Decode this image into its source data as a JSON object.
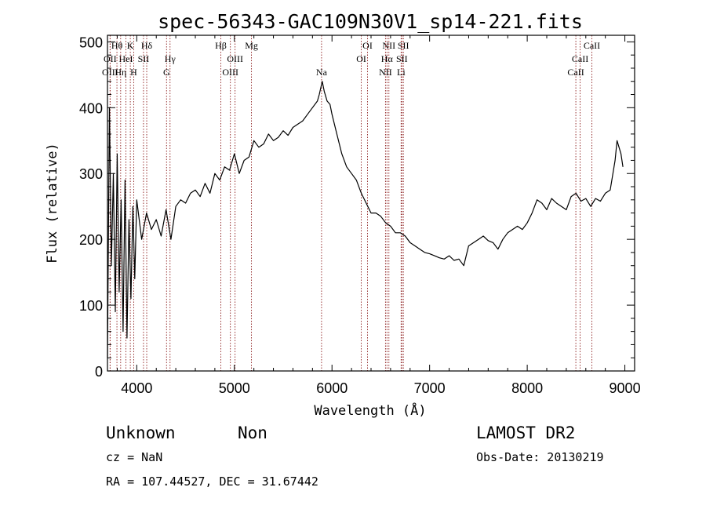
{
  "chart_data": {
    "type": "line",
    "title": "spec-56343-GAC109N30V1_sp14-221.fits",
    "xlabel": "Wavelength (Å)",
    "ylabel": "Flux (relative)",
    "xlim": [
      3700,
      9100
    ],
    "ylim": [
      0,
      510
    ],
    "xticks": [
      4000,
      5000,
      6000,
      7000,
      8000,
      9000
    ],
    "yticks": [
      0,
      100,
      200,
      300,
      400,
      500
    ],
    "grid": false,
    "series": [
      {
        "x": [
          3700,
          3720,
          3740,
          3760,
          3780,
          3800,
          3820,
          3840,
          3860,
          3880,
          3900,
          3920,
          3940,
          3960,
          3980,
          4000,
          4050,
          4100,
          4150,
          4200,
          4250,
          4300,
          4350,
          4400,
          4450,
          4500,
          4550,
          4600,
          4650,
          4700,
          4750,
          4800,
          4850,
          4900,
          4950,
          5000,
          5050,
          5100,
          5150,
          5200,
          5250,
          5300,
          5350,
          5400,
          5450,
          5500,
          5550,
          5600,
          5650,
          5700,
          5750,
          5800,
          5850,
          5870,
          5900,
          5920,
          5950,
          5980,
          6000,
          6050,
          6100,
          6150,
          6200,
          6250,
          6300,
          6350,
          6400,
          6450,
          6500,
          6550,
          6600,
          6650,
          6700,
          6750,
          6800,
          6850,
          6900,
          6950,
          7000,
          7050,
          7100,
          7150,
          7200,
          7250,
          7300,
          7350,
          7400,
          7450,
          7500,
          7550,
          7600,
          7650,
          7700,
          7750,
          7800,
          7850,
          7900,
          7950,
          8000,
          8050,
          8100,
          8150,
          8200,
          8250,
          8300,
          8350,
          8400,
          8450,
          8500,
          8550,
          8600,
          8650,
          8700,
          8750,
          8800,
          8850,
          8900,
          8920,
          8940,
          8960,
          8980
        ],
        "y": [
          20,
          400,
          160,
          300,
          90,
          330,
          120,
          260,
          60,
          290,
          50,
          230,
          110,
          250,
          140,
          260,
          200,
          240,
          215,
          230,
          205,
          245,
          200,
          250,
          260,
          255,
          270,
          275,
          265,
          285,
          270,
          300,
          290,
          310,
          305,
          330,
          300,
          320,
          325,
          350,
          340,
          345,
          360,
          350,
          355,
          365,
          358,
          370,
          375,
          380,
          390,
          400,
          410,
          420,
          440,
          425,
          410,
          405,
          390,
          360,
          330,
          310,
          300,
          290,
          270,
          255,
          240,
          240,
          235,
          225,
          220,
          210,
          210,
          205,
          195,
          190,
          185,
          180,
          178,
          175,
          172,
          170,
          175,
          168,
          170,
          160,
          190,
          195,
          200,
          205,
          198,
          195,
          185,
          200,
          210,
          215,
          220,
          215,
          225,
          240,
          260,
          255,
          245,
          262,
          255,
          250,
          245,
          265,
          270,
          258,
          262,
          250,
          262,
          258,
          270,
          275,
          320,
          350,
          340,
          330,
          310
        ]
      }
    ],
    "spectral_lines": [
      {
        "label": "Hθ",
        "x": 3797,
        "row": 1
      },
      {
        "label": "OII",
        "x": 3727,
        "row": 2
      },
      {
        "label": "OIII",
        "x": 3727,
        "row": 3
      },
      {
        "label": "K",
        "x": 3934,
        "row": 1
      },
      {
        "label": "HeI",
        "x": 3889,
        "row": 2
      },
      {
        "label": "Hη",
        "x": 3835,
        "row": 3
      },
      {
        "label": "SII",
        "x": 4069,
        "row": 2
      },
      {
        "label": "H",
        "x": 3969,
        "row": 3
      },
      {
        "label": "Hδ",
        "x": 4102,
        "row": 1
      },
      {
        "label": "Hγ",
        "x": 4341,
        "row": 2
      },
      {
        "label": "G",
        "x": 4305,
        "row": 3
      },
      {
        "label": "Hβ",
        "x": 4861,
        "row": 1
      },
      {
        "label": "OIII",
        "x": 5007,
        "row": 2
      },
      {
        "label": "OIII",
        "x": 4959,
        "row": 3
      },
      {
        "label": "Mg",
        "x": 5175,
        "row": 1
      },
      {
        "label": "Na",
        "x": 5893,
        "row": 3
      },
      {
        "label": "OI",
        "x": 6364,
        "row": 1
      },
      {
        "label": "OI",
        "x": 6300,
        "row": 2
      },
      {
        "label": "NII",
        "x": 6583,
        "row": 1
      },
      {
        "label": "Hα",
        "x": 6563,
        "row": 2
      },
      {
        "label": "NII",
        "x": 6548,
        "row": 3
      },
      {
        "label": "SII",
        "x": 6731,
        "row": 1
      },
      {
        "label": "SII",
        "x": 6716,
        "row": 2
      },
      {
        "label": "Li",
        "x": 6708,
        "row": 3
      },
      {
        "label": "CaII",
        "x": 8662,
        "row": 1
      },
      {
        "label": "CaII",
        "x": 8542,
        "row": 2
      },
      {
        "label": "CaII",
        "x": 8498,
        "row": 3
      }
    ]
  },
  "info": {
    "class_label": "Unknown",
    "subclass_label": "Non",
    "survey": "LAMOST DR2",
    "redshift": "cz = NaN",
    "obs_date": "Obs-Date: 20130219",
    "coords": "RA = 107.44527, DEC =  31.67442"
  }
}
